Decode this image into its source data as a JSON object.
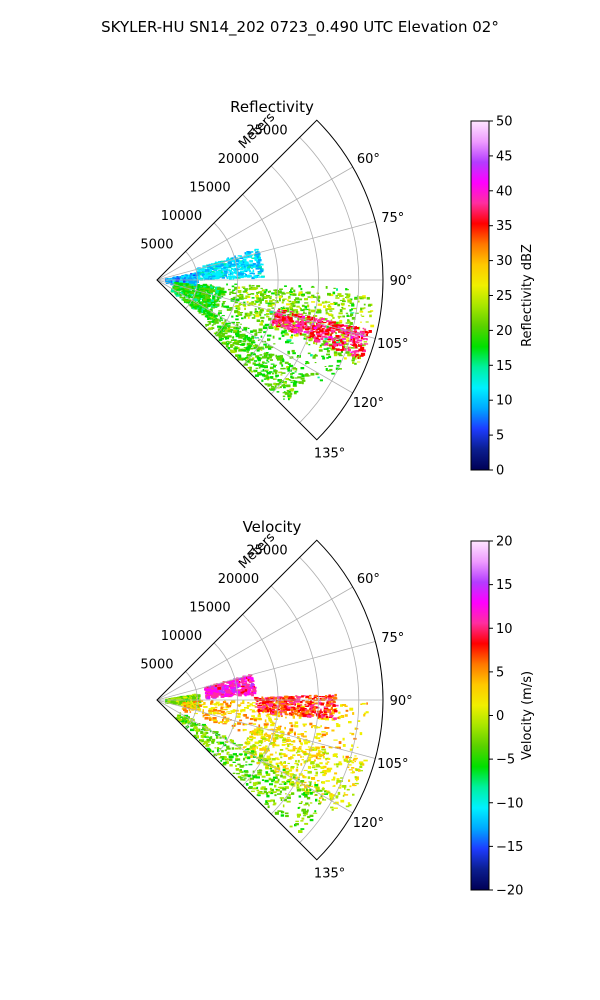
{
  "suptitle": "SKYLER-HU  SN14_202  0723_0.490 UTC Elevation 02°",
  "chart_data": [
    {
      "type": "polar_sector",
      "title": "Reflectivity",
      "range_label": "Meters",
      "range_ticks": [
        5000,
        10000,
        15000,
        20000,
        25000
      ],
      "range_tick_labels": [
        "5000",
        "10000",
        "15000",
        "20000",
        "25000"
      ],
      "rlim": [
        0,
        28000
      ],
      "theta_ticks": [
        60,
        75,
        90,
        105,
        120,
        135
      ],
      "theta_tick_labels": [
        "60°",
        "75°",
        "90°",
        "105°",
        "120°",
        "135°"
      ],
      "theta_range_deg": [
        45,
        135
      ],
      "colorbar": {
        "label": "Reflectivity dBZ",
        "min": 0,
        "max": 50,
        "ticks": [
          0,
          5,
          10,
          15,
          20,
          25,
          30,
          35,
          40,
          45,
          50
        ],
        "tick_labels": [
          "0",
          "5",
          "10",
          "15",
          "20",
          "25",
          "30",
          "35",
          "40",
          "45",
          "50"
        ],
        "stops": [
          "#000055",
          "#0b1e8f",
          "#1d3cff",
          "#00a8ff",
          "#00f0ff",
          "#00f0a0",
          "#00e000",
          "#5ad200",
          "#a8e600",
          "#f0f000",
          "#ffc800",
          "#ff7800",
          "#ff0000",
          "#ff2ea0",
          "#ff00ff",
          "#b43cff",
          "#ee9bff",
          "#ffe6ff"
        ]
      },
      "echo_regions": [
        {
          "r": [
            1000,
            5000
          ],
          "theta": [
            78,
            100
          ],
          "value": 9
        },
        {
          "r": [
            2000,
            8000
          ],
          "theta": [
            96,
            128
          ],
          "value": 18
        },
        {
          "r": [
            5000,
            13000
          ],
          "theta": [
            72,
            88
          ],
          "value": 11
        },
        {
          "r": [
            5000,
            25000
          ],
          "theta": [
            92,
            124
          ],
          "value": 19
        },
        {
          "r": [
            10000,
            27000
          ],
          "theta": [
            94,
            113
          ],
          "value": 23
        },
        {
          "r": [
            15000,
            27000
          ],
          "theta": [
            103,
            111
          ],
          "value": 37
        },
        {
          "r": [
            8000,
            22000
          ],
          "theta": [
            122,
            134
          ],
          "value": 20
        }
      ]
    },
    {
      "type": "polar_sector",
      "title": "Velocity",
      "range_label": "Meters",
      "range_ticks": [
        5000,
        10000,
        15000,
        20000,
        25000
      ],
      "range_tick_labels": [
        "5000",
        "10000",
        "15000",
        "20000",
        "25000"
      ],
      "rlim": [
        0,
        28000
      ],
      "theta_ticks": [
        60,
        75,
        90,
        105,
        120,
        135
      ],
      "theta_tick_labels": [
        "60°",
        "75°",
        "90°",
        "105°",
        "120°",
        "135°"
      ],
      "theta_range_deg": [
        45,
        135
      ],
      "colorbar": {
        "label": "Velocity (m/s)",
        "min": -20,
        "max": 20,
        "ticks": [
          -20,
          -15,
          -10,
          -5,
          0,
          5,
          10,
          15,
          20
        ],
        "tick_labels": [
          "−20",
          "−15",
          "−10",
          "−5",
          "0",
          "5",
          "10",
          "15",
          "20"
        ],
        "stops": [
          "#000055",
          "#0b1e8f",
          "#1d3cff",
          "#00a8ff",
          "#00f0ff",
          "#00f0a0",
          "#00e000",
          "#5ad200",
          "#a8e600",
          "#f0f000",
          "#ffc800",
          "#ff7800",
          "#ff0000",
          "#ff2ea0",
          "#ff00ff",
          "#b43cff",
          "#ee9bff",
          "#ffe6ff"
        ]
      },
      "echo_regions": [
        {
          "r": [
            1000,
            5000
          ],
          "theta": [
            80,
            100
          ],
          "value": -2
        },
        {
          "r": [
            6000,
            12000
          ],
          "theta": [
            74,
            86
          ],
          "value": 12
        },
        {
          "r": [
            3000,
            26000
          ],
          "theta": [
            90,
            110
          ],
          "value": 3
        },
        {
          "r": [
            12000,
            22000
          ],
          "theta": [
            88,
            96
          ],
          "value": 8
        },
        {
          "r": [
            12000,
            27000
          ],
          "theta": [
            106,
            122
          ],
          "value": 1
        },
        {
          "r": [
            3000,
            24000
          ],
          "theta": [
            118,
            134
          ],
          "value": -3
        }
      ]
    }
  ]
}
